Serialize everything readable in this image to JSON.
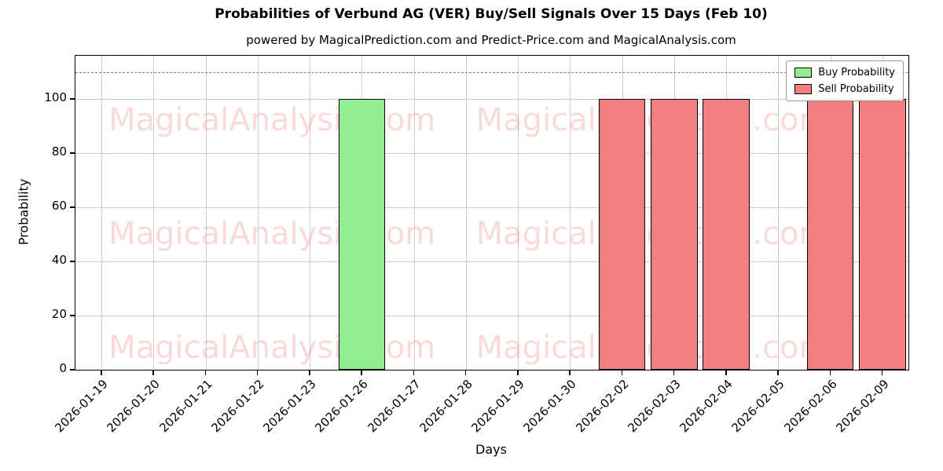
{
  "figure": {
    "subtitle": "powered by MagicalPrediction.com and Predict-Price.com and MagicalAnalysis.com"
  },
  "watermarks": {
    "left": "MagicalAnalysis.com",
    "right": "MagicalPrediction.com"
  },
  "chart_data": {
    "type": "bar",
    "title": "Probabilities of Verbund AG (VER) Buy/Sell Signals Over 15 Days (Feb 10)",
    "xlabel": "Days",
    "ylabel": "Probability",
    "categories": [
      "2026-01-19",
      "2026-01-20",
      "2026-01-21",
      "2026-01-22",
      "2026-01-23",
      "2026-01-26",
      "2026-01-27",
      "2026-01-28",
      "2026-01-29",
      "2026-01-30",
      "2026-02-02",
      "2026-02-03",
      "2026-02-04",
      "2026-02-05",
      "2026-02-06",
      "2026-02-09"
    ],
    "series": [
      {
        "name": "Buy Probability",
        "color": "#90ee90",
        "values": [
          0,
          0,
          0,
          0,
          0,
          100,
          0,
          0,
          0,
          0,
          0,
          0,
          0,
          0,
          0,
          0
        ]
      },
      {
        "name": "Sell Probability",
        "color": "#f08080",
        "values": [
          0,
          0,
          0,
          0,
          0,
          0,
          0,
          0,
          0,
          0,
          100,
          100,
          100,
          0,
          100,
          100
        ]
      }
    ],
    "yticks": [
      0,
      20,
      40,
      60,
      80,
      100
    ],
    "ylim": [
      0,
      116
    ],
    "dashed_line_y": 110,
    "grid": true,
    "legend_position": "upper right",
    "bar_edge_color": "#000000"
  }
}
